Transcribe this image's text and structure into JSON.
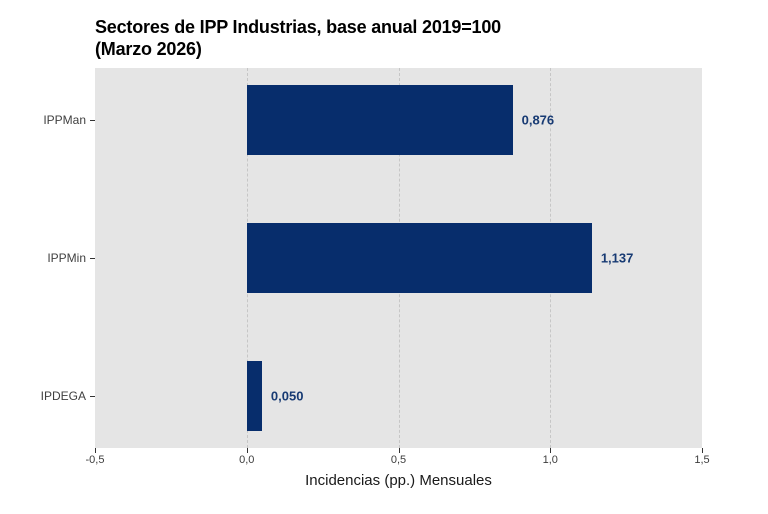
{
  "chart_data": {
    "type": "bar",
    "orientation": "horizontal",
    "title_line1": "Sectores de IPP Industrias, base anual 2019=100",
    "title_line2": "(Marzo 2026)",
    "xlabel": "Incidencias (pp.) Mensuales",
    "categories": [
      "IPPMan",
      "IPPMin",
      "IPDEGA"
    ],
    "values": [
      0.876,
      1.137,
      0.05
    ],
    "value_labels": [
      "0,876",
      "1,137",
      "0,050"
    ],
    "xlim": [
      -0.5,
      1.5
    ],
    "xticks": [
      -0.5,
      0.0,
      0.5,
      1.0,
      1.5
    ],
    "xtick_labels": [
      "-0,5",
      "0,0",
      "0,5",
      "1,0",
      "1,5"
    ],
    "grid": "vertical-dashed-major-only",
    "legend": "none",
    "colors": {
      "bar": "#072d6c",
      "value_label": "#173a73",
      "panel_background": "#e5e5e5",
      "figure_background": "#ffffff",
      "gridline": "#c6c6c6",
      "tick_mark": "#333333",
      "tick_text": "#3c3c3c",
      "y_label_text": "#404040",
      "axis_title_text": "#1a1a1a",
      "title_text": "#000000"
    }
  }
}
